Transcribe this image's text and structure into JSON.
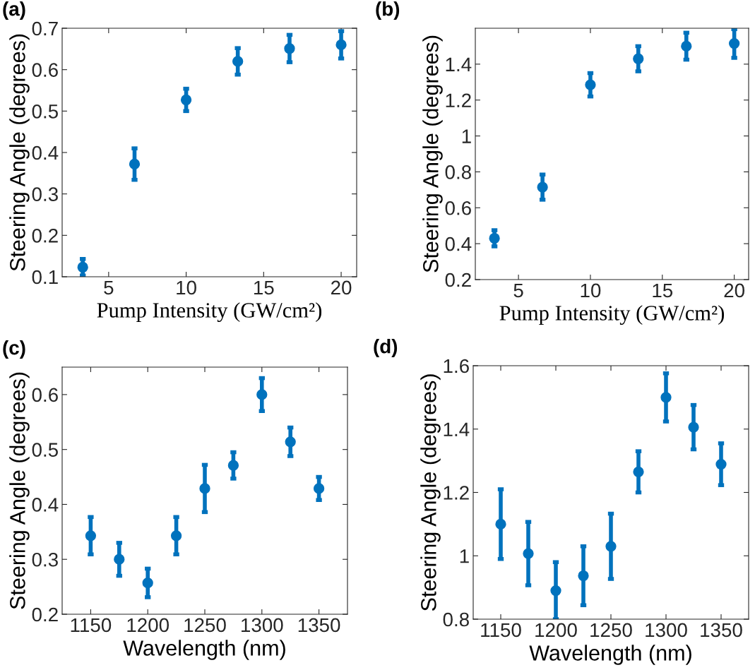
{
  "chart_data": [
    {
      "type": "scatter",
      "annotations": [
        "(a)"
      ],
      "xlabel": "Pump Intensity (GW/cm²)",
      "ylabel": "Steering Angle (degrees)",
      "x": [
        3.33,
        6.67,
        10,
        13.33,
        16.67,
        20
      ],
      "values": [
        0.123,
        0.372,
        0.527,
        0.62,
        0.651,
        0.66
      ],
      "errors": [
        0.02,
        0.038,
        0.027,
        0.032,
        0.033,
        0.033
      ],
      "color": "#0072bd",
      "marker": "circle",
      "xlim": [
        2,
        21
      ],
      "xticks": [
        5,
        10,
        15,
        20
      ],
      "ylim": [
        0.1,
        0.7
      ],
      "yticks": [
        0.1,
        0.2,
        0.3,
        0.4,
        0.5,
        0.6,
        0.7
      ],
      "grid": false
    },
    {
      "type": "scatter",
      "annotations": [
        "(b)"
      ],
      "xlabel": "Pump Intensity (GW/cm²)",
      "ylabel": "Steering Angle (degrees)",
      "x": [
        3.33,
        6.67,
        10,
        13.33,
        16.67,
        20
      ],
      "values": [
        0.43,
        0.715,
        1.285,
        1.43,
        1.5,
        1.515
      ],
      "errors": [
        0.045,
        0.07,
        0.065,
        0.07,
        0.075,
        0.08
      ],
      "color": "#0072bd",
      "marker": "circle",
      "xlim": [
        2,
        21
      ],
      "xticks": [
        5,
        10,
        15,
        20
      ],
      "ylim": [
        0.2,
        1.6
      ],
      "yticks": [
        0.2,
        0.4,
        0.6,
        0.8,
        1,
        1.2,
        1.4
      ],
      "grid": false
    },
    {
      "type": "scatter",
      "annotations": [
        "(c)"
      ],
      "xlabel": "Wavelength (nm)",
      "ylabel": "Steering Angle (degrees)",
      "x": [
        1150,
        1175,
        1200,
        1225,
        1250,
        1275,
        1300,
        1325,
        1350
      ],
      "values": [
        0.343,
        0.3,
        0.257,
        0.343,
        0.429,
        0.471,
        0.6,
        0.514,
        0.429
      ],
      "errors": [
        0.034,
        0.03,
        0.026,
        0.034,
        0.043,
        0.024,
        0.03,
        0.026,
        0.021
      ],
      "color": "#0072bd",
      "marker": "circle",
      "xlim": [
        1125,
        1375
      ],
      "xticks": [
        1150,
        1200,
        1250,
        1300,
        1350
      ],
      "ylim": [
        0.2,
        0.65
      ],
      "yticks": [
        0.2,
        0.3,
        0.4,
        0.5,
        0.6
      ],
      "grid": false
    },
    {
      "type": "scatter",
      "annotations": [
        "(d)"
      ],
      "xlabel": "Wavelength (nm)",
      "ylabel": "Steering Angle (degrees)",
      "x": [
        1150,
        1175,
        1200,
        1225,
        1250,
        1275,
        1300,
        1325,
        1350
      ],
      "values": [
        1.1,
        1.007,
        0.89,
        0.937,
        1.03,
        1.265,
        1.5,
        1.406,
        1.289
      ],
      "errors": [
        0.11,
        0.1,
        0.09,
        0.093,
        0.103,
        0.065,
        0.076,
        0.07,
        0.066
      ],
      "color": "#0072bd",
      "marker": "circle",
      "xlim": [
        1125,
        1375
      ],
      "xticks": [
        1150,
        1200,
        1250,
        1300,
        1350
      ],
      "ylim": [
        0.8,
        1.6
      ],
      "yticks": [
        0.8,
        1,
        1.2,
        1.4,
        1.6
      ],
      "grid": false
    }
  ]
}
